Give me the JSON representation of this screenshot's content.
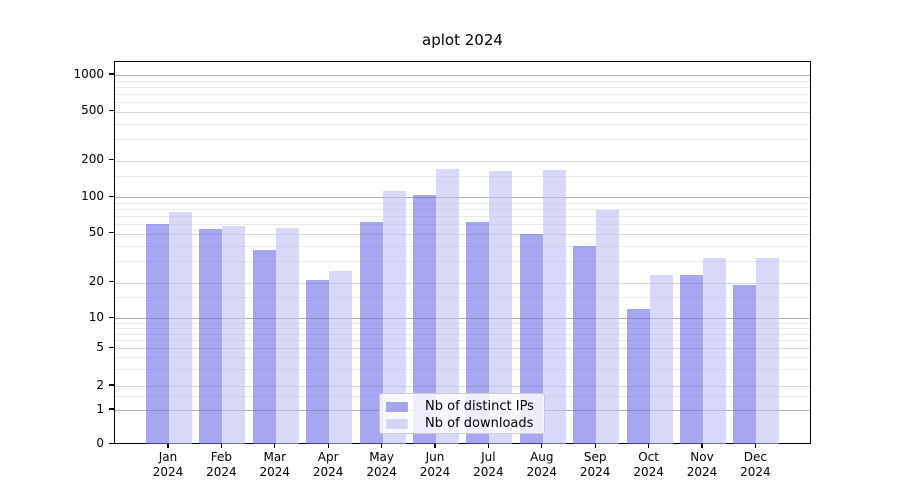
{
  "chart_data": {
    "type": "bar",
    "title": "aplot 2024",
    "categories": [
      "Jan",
      "Feb",
      "Mar",
      "Apr",
      "May",
      "Jun",
      "Jul",
      "Aug",
      "Sep",
      "Oct",
      "Nov",
      "Dec"
    ],
    "category_year": "2024",
    "series": [
      {
        "name": "Nb of distinct IPs",
        "color": "#6c6ce8",
        "opacity": 0.6,
        "values": [
          60,
          55,
          37,
          21,
          63,
          105,
          63,
          50,
          40,
          12,
          23,
          19
        ]
      },
      {
        "name": "Nb of downloads",
        "color": "#bebef3",
        "opacity": 0.6,
        "values": [
          75,
          58,
          56,
          25,
          112,
          170,
          166,
          169,
          78,
          23,
          32,
          32
        ]
      }
    ],
    "yscale": "symlog",
    "ylim": [
      0,
      1000
    ],
    "yticks": [
      0,
      1,
      2,
      5,
      10,
      20,
      50,
      100,
      200,
      500,
      1000
    ],
    "ytick_labels": [
      "0",
      "1",
      "2",
      "5",
      "10",
      "20",
      "50",
      "100",
      "200",
      "500",
      "1000"
    ],
    "gridlines": {
      "major_values": [
        1,
        10,
        100,
        1000
      ],
      "mid_values": [
        2,
        5,
        20,
        50,
        200,
        500
      ],
      "minor_values": [
        1.5,
        3,
        4,
        6,
        7,
        8,
        9,
        15,
        30,
        40,
        60,
        70,
        80,
        90,
        150,
        300,
        400,
        600,
        700,
        800,
        900
      ]
    },
    "legend_position": "lower-center",
    "xlabel": "",
    "ylabel": ""
  },
  "colors": {
    "background": "#ffffff",
    "axis": "#000000",
    "grid_major": "#b0b0b0",
    "grid_mid": "#d8d8d8",
    "grid_minor": "#eaeaea",
    "legend_border": "#cccccc",
    "text": "#000000"
  }
}
